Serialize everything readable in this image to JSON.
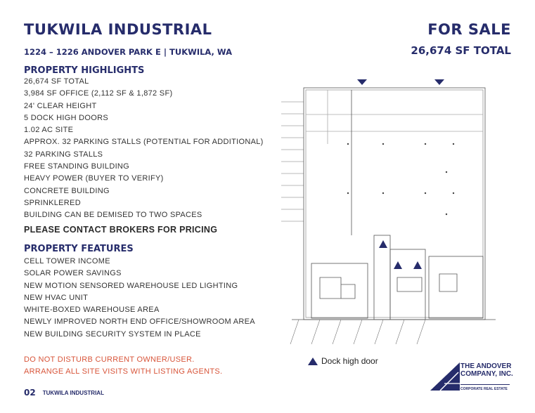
{
  "header": {
    "title": "TUKWILA INDUSTRIAL",
    "address": "1224 – 1226 ANDOVER PARK E | TUKWILA, WA",
    "status": "FOR SALE",
    "total": "26,674 SF TOTAL"
  },
  "highlights": {
    "heading": "PROPERTY HIGHLIGHTS",
    "items": [
      "26,674 SF TOTAL",
      "3,984 SF OFFICE (2,112 SF & 1,872 SF)",
      "24' CLEAR HEIGHT",
      "5 DOCK HIGH DOORS",
      "1.02 AC SITE",
      "APPROX. 32 PARKING STALLS (POTENTIAL FOR ADDITIONAL)",
      "32 PARKING STALLS",
      "FREE STANDING BUILDING",
      "HEAVY POWER (BUYER TO VERIFY)",
      "CONCRETE BUILDING",
      "SPRINKLERED",
      "BUILDING CAN BE DEMISED TO TWO SPACES"
    ],
    "contact": "PLEASE CONTACT BROKERS FOR PRICING"
  },
  "features": {
    "heading": "PROPERTY FEATURES",
    "items": [
      "CELL TOWER INCOME",
      "SOLAR POWER SAVINGS",
      "NEW MOTION SENSORED WAREHOUSE LED LIGHTING",
      "NEW HVAC UNIT",
      "WHITE-BOXED WAREHOUSE AREA",
      "NEWLY IMPROVED NORTH END OFFICE/SHOWROOM AREA",
      "NEW BUILDING SECURITY SYSTEM IN PLACE"
    ]
  },
  "warnings": [
    "DO NOT DISTURB CURRENT OWNER/USER.",
    "ARRANGE ALL SITE VISITS WITH LISTING AGENTS."
  ],
  "legend": {
    "icon": "triangle-icon",
    "label": "Dock high door"
  },
  "logo": {
    "name": "THE ANDOVER COMPANY, INC.",
    "tagline": "CORPORATE REAL ESTATE"
  },
  "footer": {
    "page": "02",
    "label": "TUKWILA INDUSTRIAL"
  },
  "colors": {
    "navy": "#262c6b",
    "orange": "#d8553a"
  }
}
